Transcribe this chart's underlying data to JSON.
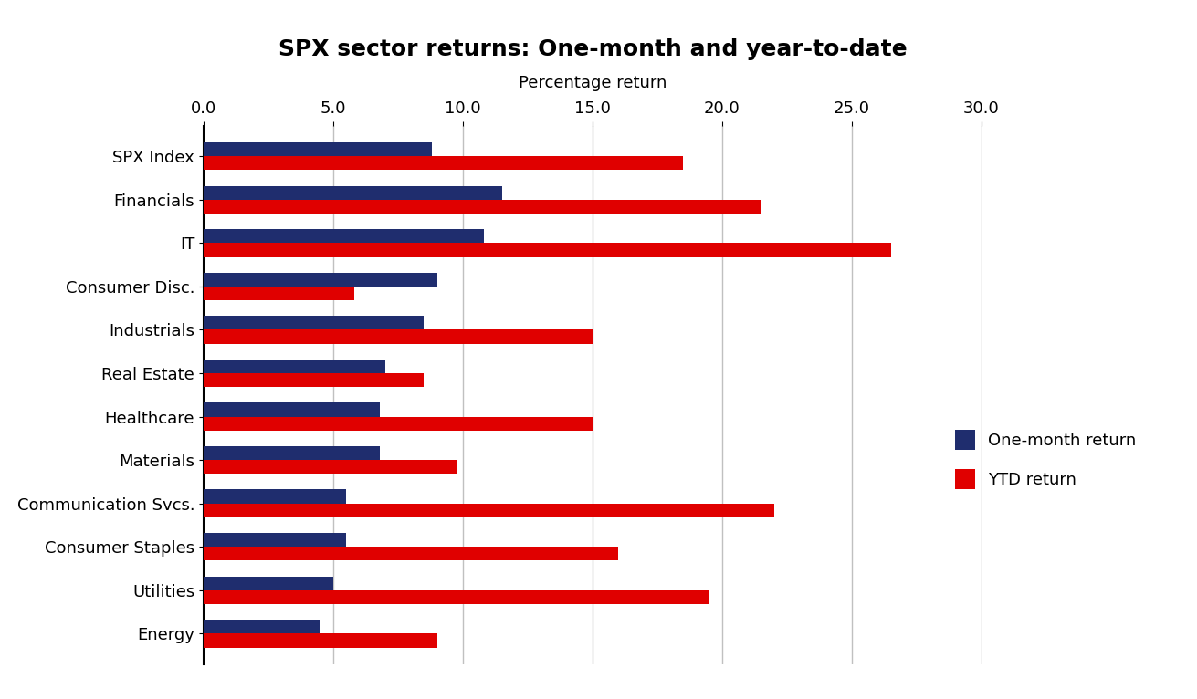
{
  "title": "SPX sector returns: One-month and year-to-date",
  "xlabel": "Percentage return",
  "categories": [
    "SPX Index",
    "Financials",
    "IT",
    "Consumer Disc.",
    "Industrials",
    "Real Estate",
    "Healthcare",
    "Materials",
    "Communication Svcs.",
    "Consumer Staples",
    "Utilities",
    "Energy"
  ],
  "one_month": [
    8.8,
    11.5,
    10.8,
    9.0,
    8.5,
    7.0,
    6.8,
    6.8,
    5.5,
    5.5,
    5.0,
    4.5
  ],
  "ytd": [
    18.5,
    21.5,
    26.5,
    5.8,
    15.0,
    8.5,
    15.0,
    9.8,
    22.0,
    16.0,
    19.5,
    9.0
  ],
  "color_one_month": "#1f2d6e",
  "color_ytd": "#e00000",
  "xlim": [
    0,
    30
  ],
  "xticks": [
    0.0,
    5.0,
    10.0,
    15.0,
    20.0,
    25.0,
    30.0
  ],
  "legend_one_month": "One-month return",
  "legend_ytd": "YTD return",
  "title_fontsize": 18,
  "label_fontsize": 13,
  "tick_fontsize": 13,
  "bar_height": 0.32,
  "grid_color": "#c0c0c0",
  "background_color": "#ffffff"
}
